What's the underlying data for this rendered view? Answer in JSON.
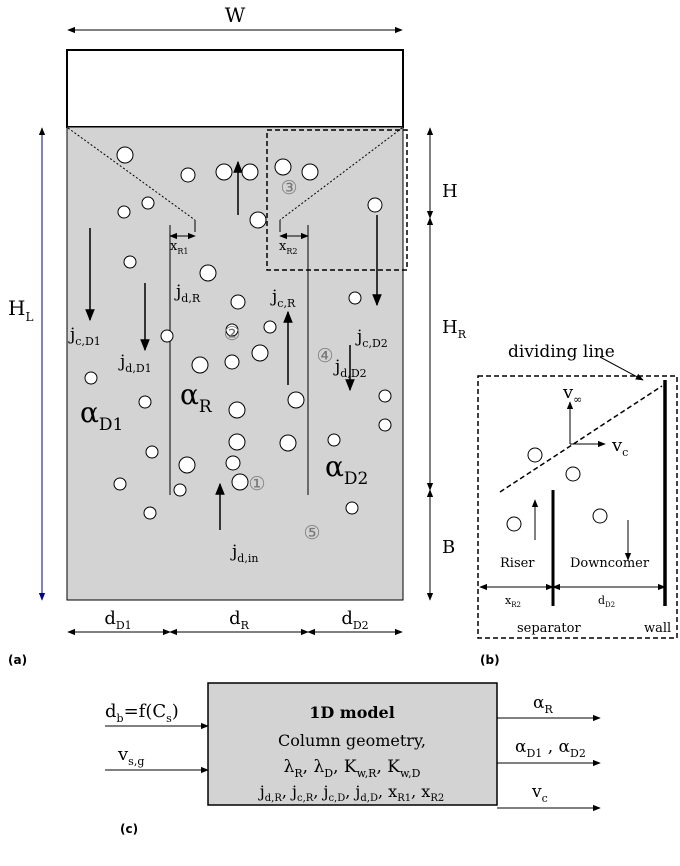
{
  "panel_a": {
    "caption": "(a)",
    "width": "W",
    "height_total": [
      {
        "text": "H",
        "sub": "L"
      }
    ],
    "H": "H",
    "H_R": [
      {
        "text": "H",
        "sub": "R"
      }
    ],
    "B": "B",
    "d_D1": [
      {
        "text": "d",
        "sub": "D1"
      }
    ],
    "d_R": [
      {
        "text": "d",
        "sub": "R"
      }
    ],
    "d_D2": [
      {
        "text": "d",
        "sub": "D2"
      }
    ],
    "x_R1": [
      {
        "text": "x",
        "sub": "R1"
      }
    ],
    "x_R2": [
      {
        "text": "x",
        "sub": "R2"
      }
    ],
    "j_cD1": [
      {
        "text": "j",
        "sub": "c,D1"
      }
    ],
    "j_dD1": [
      {
        "text": "j",
        "sub": "d,D1"
      }
    ],
    "alpha_D1": [
      {
        "text": "α",
        "sub": "D1"
      }
    ],
    "j_dR": [
      {
        "text": "j",
        "sub": "d,R"
      }
    ],
    "alpha_R": [
      {
        "text": "α",
        "sub": "R"
      }
    ],
    "j_cR": [
      {
        "text": "j",
        "sub": "c,R"
      }
    ],
    "j_cD2": [
      {
        "text": "j",
        "sub": "c,D2"
      }
    ],
    "j_dD2": [
      {
        "text": "j",
        "sub": "d,D2"
      }
    ],
    "alpha_D2": [
      {
        "text": "α",
        "sub": "D2"
      }
    ],
    "j_din": [
      {
        "text": "j",
        "sub": "d,in"
      }
    ],
    "zones": [
      "①",
      "②",
      "③",
      "④",
      "⑤"
    ]
  },
  "panel_b": {
    "caption": "(b)",
    "dividing_line": "dividing line",
    "v_inf": [
      {
        "text": "v",
        "sub": "∞"
      }
    ],
    "v_c": [
      {
        "text": "v",
        "sub": "c"
      }
    ],
    "riser": "Riser",
    "downcomer": "Downcomer",
    "x_R2": [
      {
        "text": "x",
        "sub": "R2"
      }
    ],
    "d_D2": [
      {
        "text": "d",
        "sub": "D2"
      }
    ],
    "separator": "separator",
    "wall": "wall"
  },
  "panel_c": {
    "caption": "(c)",
    "title": "1D model",
    "line1": "Column geometry,",
    "line2": [
      {
        "text": "λ",
        "sub": "R"
      },
      {
        "text": ", λ",
        "sub": "D"
      },
      {
        "text": ", K",
        "sub": "w,R"
      },
      {
        "text": ", K",
        "sub": "w,D"
      }
    ],
    "line3": [
      {
        "text": "j",
        "sub": "d,R"
      },
      {
        "text": ", j",
        "sub": "c,R"
      },
      {
        "text": ", j",
        "sub": "c,D"
      },
      {
        "text": ", j",
        "sub": "d,D"
      },
      {
        "text": ", x",
        "sub": "R1"
      },
      {
        "text": ", x",
        "sub": "R2"
      }
    ],
    "input_db": [
      {
        "text": "d",
        "sub": "b"
      },
      {
        "text": "=f(C",
        "sub": "s"
      },
      {
        "text": ")"
      }
    ],
    "input_vsg": [
      {
        "text": "v",
        "sub": "s,g"
      }
    ],
    "output_alphaR": [
      {
        "text": "α",
        "sub": "R"
      }
    ],
    "output_alphaD": [
      {
        "text": "α",
        "sub": "D1"
      },
      {
        "text": " , α",
        "sub": "D2"
      }
    ],
    "output_vc": [
      {
        "text": "v",
        "sub": "c"
      }
    ]
  }
}
